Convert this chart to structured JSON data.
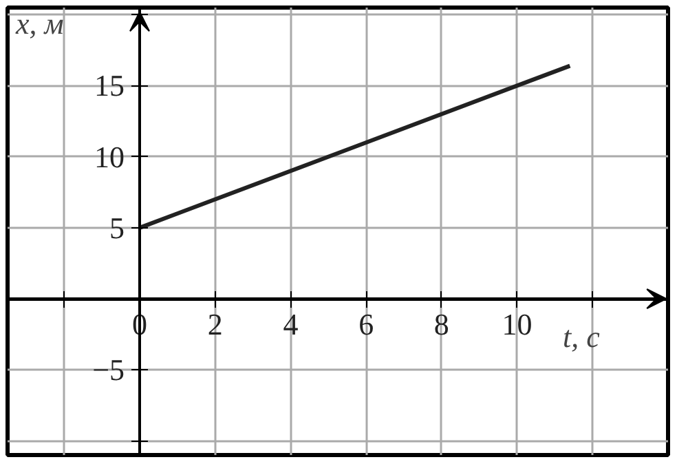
{
  "chart_data": {
    "type": "line",
    "xlabel": "t, с",
    "ylabel": "x, м",
    "x": [
      0,
      11.4
    ],
    "values": [
      5,
      16.4
    ],
    "color": "#222222",
    "xlim": [
      -3.5,
      14
    ],
    "ylim": [
      -11,
      20.5
    ],
    "xticks": [
      {
        "value": -2,
        "label": null
      },
      0,
      2,
      4,
      6,
      8,
      10,
      {
        "value": 12,
        "label": null
      }
    ],
    "yticks": [
      {
        "value": -10,
        "label": null
      },
      {
        "value": -5,
        "label": "−5"
      },
      5,
      10,
      15,
      {
        "value": 20,
        "label": null
      }
    ],
    "grid": true
  }
}
